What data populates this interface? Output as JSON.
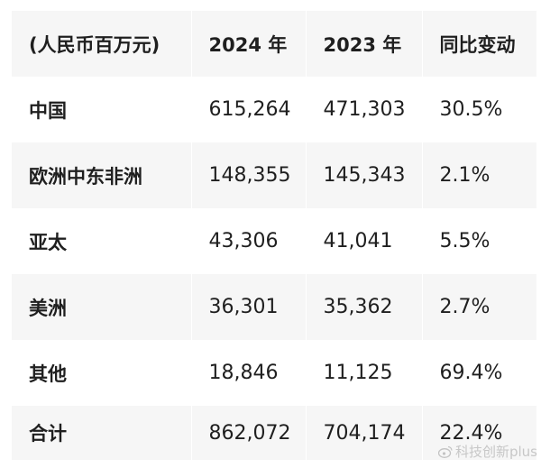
{
  "table": {
    "headers": [
      "(人民币百万元)",
      "2024 年",
      "2023 年",
      "同比变动"
    ],
    "rows": [
      {
        "region": "中国",
        "y2024": "615,264",
        "y2023": "471,303",
        "change": "30.5%"
      },
      {
        "region": "欧洲中东非洲",
        "y2024": "148,355",
        "y2023": "145,343",
        "change": "2.1%"
      },
      {
        "region": "亚太",
        "y2024": "43,306",
        "y2023": "41,041",
        "change": "5.5%"
      },
      {
        "region": "美洲",
        "y2024": "36,301",
        "y2023": "35,362",
        "change": "2.7%"
      },
      {
        "region": "其他",
        "y2024": "18,846",
        "y2023": "11,125",
        "change": "69.4%"
      },
      {
        "region": "合计",
        "y2024": "862,072",
        "y2023": "704,174",
        "change": "22.4%"
      }
    ]
  },
  "watermark": {
    "text": "科技创新plus",
    "icon": "weibo-icon"
  }
}
